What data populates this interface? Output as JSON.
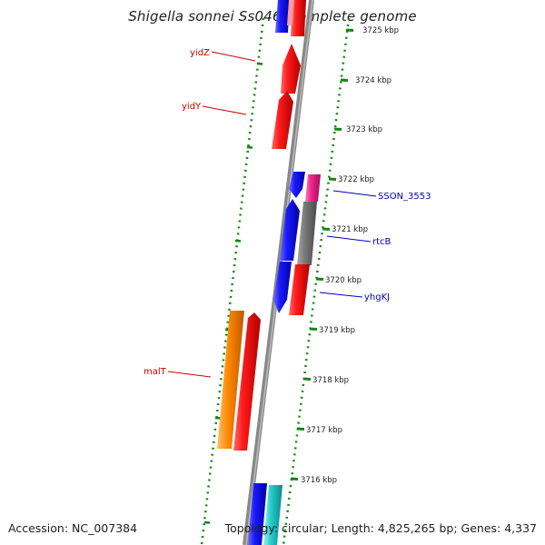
{
  "title": "Shigella sonnei Ss046, complete genome",
  "footer": {
    "accession": "Accession: NC_007384",
    "summary": "Topology: circular; Length: 4,825,265 bp; Genes: 4,337"
  },
  "ticks": [
    "3725 kbp",
    "3724 kbp",
    "3723 kbp",
    "3722 kbp",
    "3721 kbp",
    "3720 kbp",
    "3719 kbp",
    "3718 kbp",
    "3717 kbp",
    "3716 kbp"
  ],
  "labels": [
    {
      "text": "yidZ",
      "color": "#cc0000"
    },
    {
      "text": "yidY",
      "color": "#cc0000"
    },
    {
      "text": "SSON_3553",
      "color": "#0000bb"
    },
    {
      "text": "rtcB",
      "color": "#0000bb"
    },
    {
      "text": "yhgKJ",
      "color": "#0000bb"
    },
    {
      "text": "malT",
      "color": "#cc0000"
    }
  ],
  "colors": {
    "red": "#ee1111",
    "blue": "#1a1aee",
    "pink": "#ee2288",
    "gray": "#777777",
    "orange": "#ff8800",
    "cyan": "#22cccc",
    "backbone": "#888888",
    "ring_dots": "#118811"
  }
}
